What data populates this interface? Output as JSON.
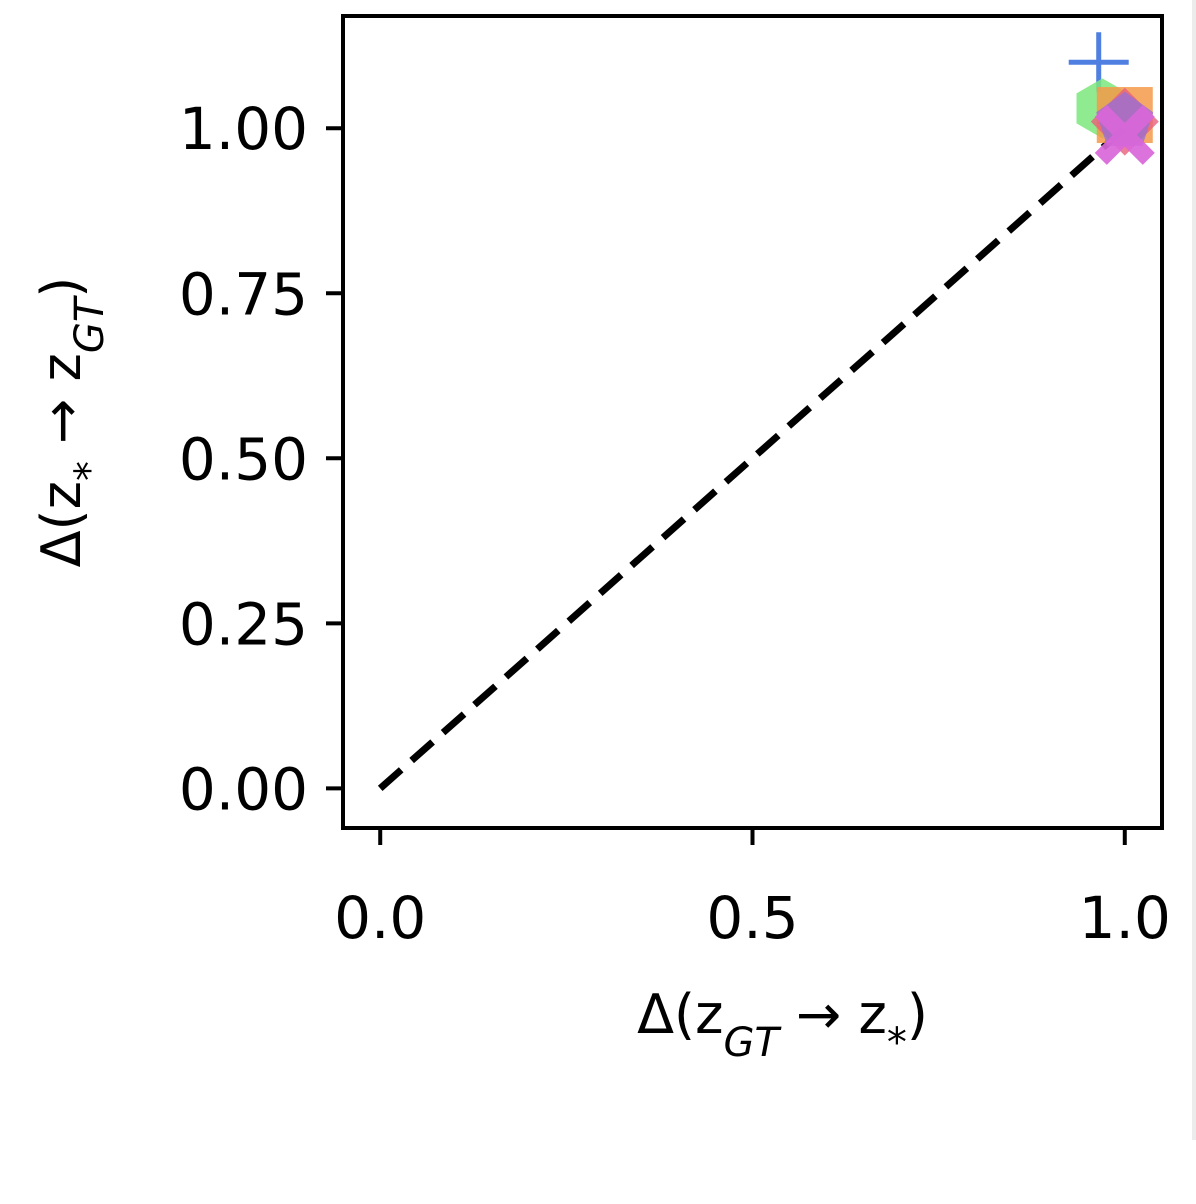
{
  "chart_data": {
    "type": "scatter",
    "title": "",
    "xlabel": "Δ(z_GT → z_*)",
    "ylabel": "Δ(z_* → z_GT)",
    "xlim": [
      -0.05,
      1.05
    ],
    "ylim": [
      -0.06,
      1.17
    ],
    "x_ticks": [
      0.0,
      0.5,
      1.0
    ],
    "y_ticks": [
      0.0,
      0.25,
      0.5,
      0.75,
      1.0
    ],
    "x_tick_labels": [
      "0.0",
      "0.5",
      "1.0"
    ],
    "y_tick_labels": [
      "0.00",
      "0.25",
      "0.50",
      "0.75",
      "1.00"
    ],
    "grid": false,
    "reference_line": {
      "style": "dashed",
      "color": "#000000",
      "x": [
        0,
        1
      ],
      "y": [
        0,
        1
      ]
    },
    "series": [
      {
        "marker": "plus",
        "color": "#4f7fe0",
        "points": [
          {
            "x": 0.965,
            "y": 1.1
          }
        ]
      },
      {
        "marker": "hexagon",
        "color": "#7de87d",
        "points": [
          {
            "x": 0.97,
            "y": 1.03
          }
        ]
      },
      {
        "marker": "square",
        "color": "#f49a4a",
        "points": [
          {
            "x": 1.0,
            "y": 1.02
          }
        ]
      },
      {
        "marker": "diamond",
        "color": "#e8607a",
        "points": [
          {
            "x": 1.0,
            "y": 1.01
          }
        ]
      },
      {
        "marker": "pentagon",
        "color": "#9b6fd6",
        "points": [
          {
            "x": 1.0,
            "y": 1.01
          }
        ]
      },
      {
        "marker": "x-filled",
        "color": "#d966d9",
        "points": [
          {
            "x": 1.0,
            "y": 0.99
          }
        ]
      }
    ]
  }
}
